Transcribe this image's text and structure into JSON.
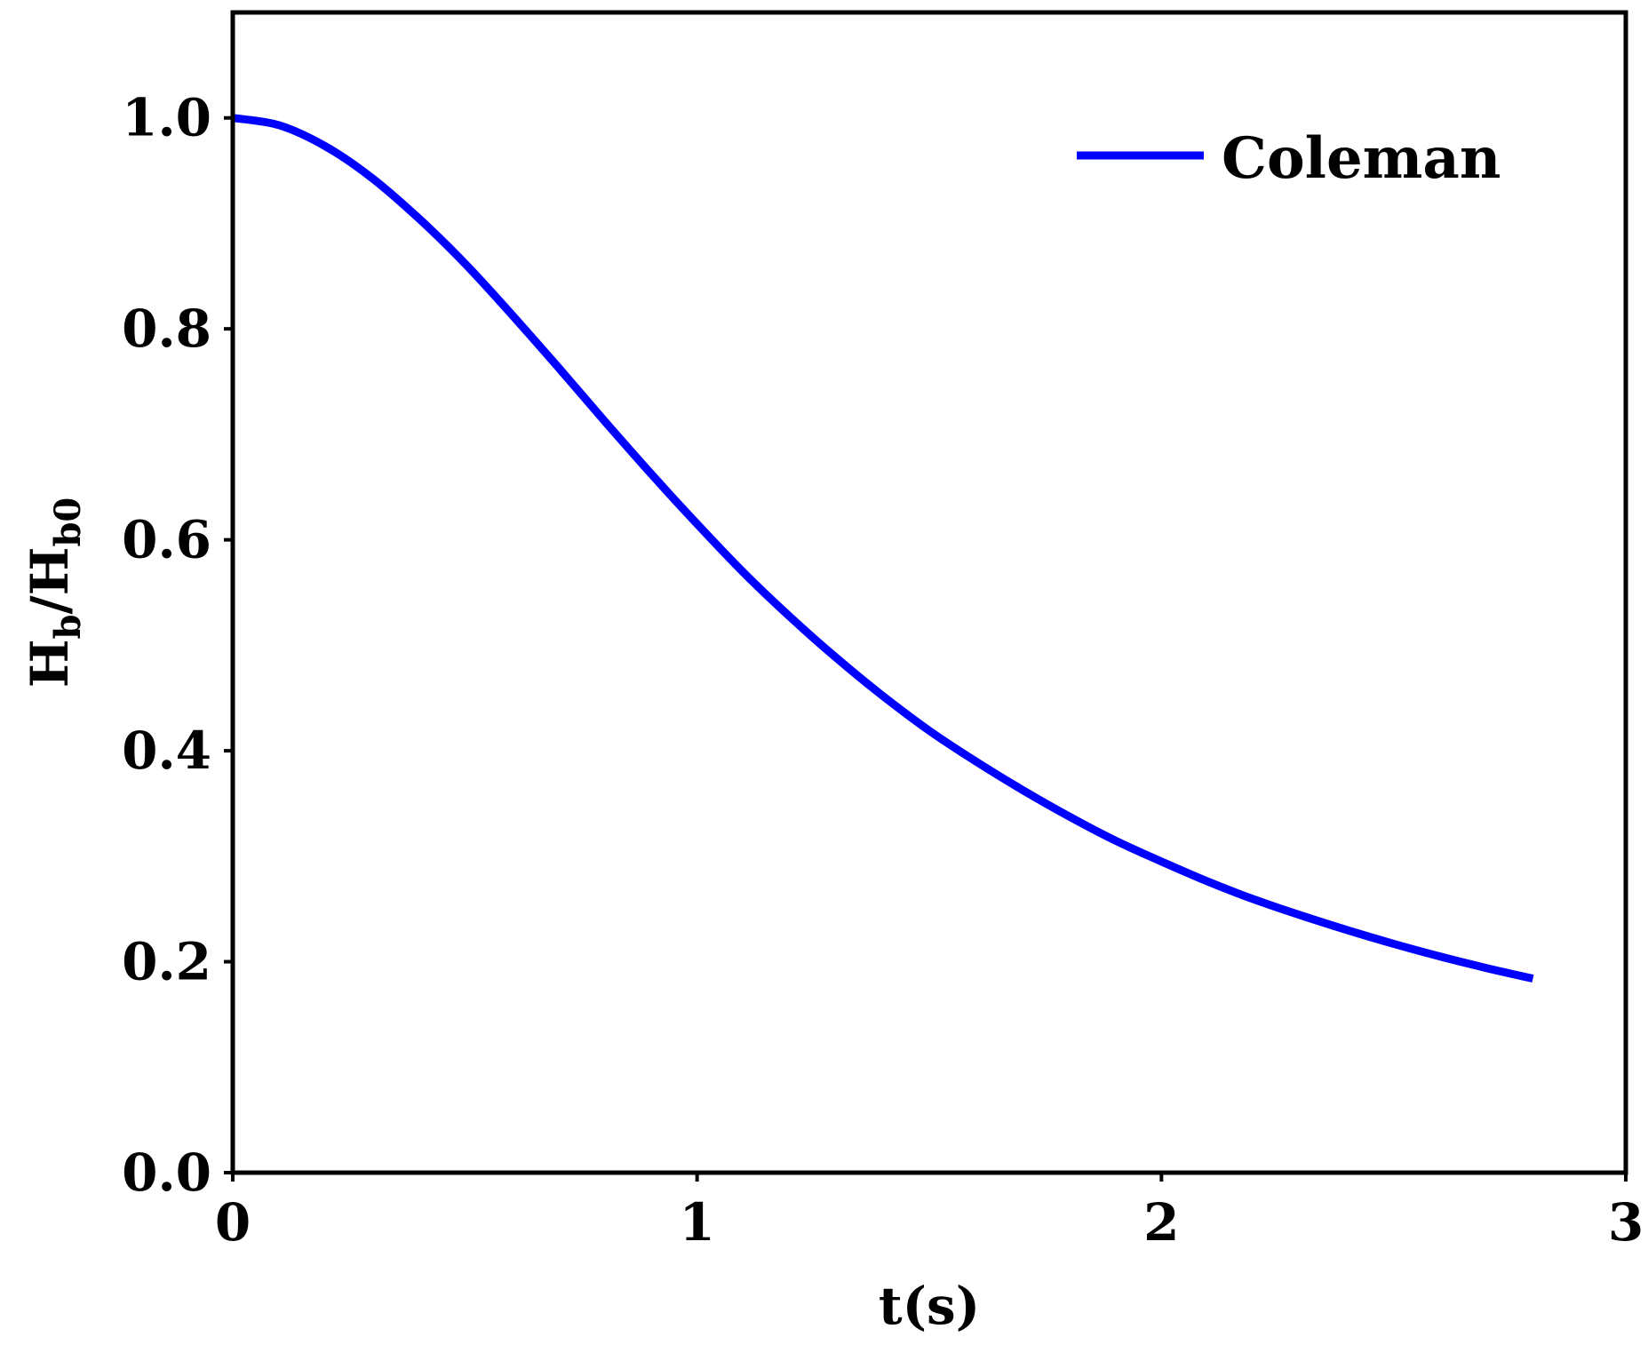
{
  "chart_data": {
    "type": "line",
    "xlabel": "t(s)",
    "ylabel": {
      "parts": [
        {
          "text": "H",
          "sub": false
        },
        {
          "text": "b",
          "sub": true
        },
        {
          "text": "/H",
          "sub": false
        },
        {
          "text": "b0",
          "sub": true
        }
      ]
    },
    "xlim": [
      0,
      3
    ],
    "ylim": [
      0,
      1.1
    ],
    "xticks": [
      0,
      1,
      2,
      3
    ],
    "xtick_labels": [
      "0",
      "1",
      "2",
      "3"
    ],
    "yticks": [
      0.0,
      0.2,
      0.4,
      0.6,
      0.8,
      1.0
    ],
    "ytick_labels": [
      "0.0",
      "0.2",
      "0.4",
      "0.6",
      "0.8",
      "1.0"
    ],
    "grid": false,
    "legend_position": "top-right",
    "series": [
      {
        "name": "Coleman",
        "color": "#0000ff",
        "x": [
          0.0,
          0.1,
          0.2,
          0.3,
          0.4,
          0.5,
          0.6,
          0.7,
          0.8,
          0.9,
          1.0,
          1.1,
          1.2,
          1.3,
          1.4,
          1.5,
          1.6,
          1.7,
          1.8,
          1.9,
          2.0,
          2.1,
          2.2,
          2.3,
          2.4,
          2.5,
          2.6,
          2.7,
          2.8
        ],
        "y": [
          1.0,
          0.993,
          0.973,
          0.943,
          0.905,
          0.862,
          0.814,
          0.764,
          0.713,
          0.663,
          0.615,
          0.569,
          0.527,
          0.488,
          0.452,
          0.419,
          0.39,
          0.363,
          0.338,
          0.315,
          0.295,
          0.276,
          0.259,
          0.244,
          0.23,
          0.217,
          0.205,
          0.194,
          0.184
        ]
      }
    ]
  }
}
